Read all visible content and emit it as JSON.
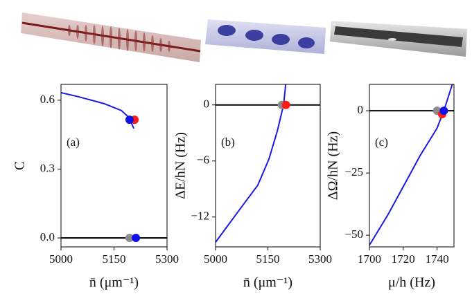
{
  "chart_data": [
    {
      "type": "line",
      "panel_label": "(a)",
      "ylabel": "C",
      "xlabel": "n̄ (μm⁻¹)",
      "xlim": [
        5000,
        5300
      ],
      "ylim": [
        -0.039,
        0.669
      ],
      "xticks": [
        5000,
        5150,
        5300
      ],
      "yticks": [
        {
          "value": 0,
          "label": "0.0"
        },
        0.3,
        0.6
      ],
      "hline": 0,
      "series": [
        {
          "color": "#1a1ae0",
          "x": [
            5000,
            5050,
            5122,
            5171,
            5192,
            5206
          ],
          "values": [
            0.633,
            0.615,
            0.585,
            0.555,
            0.525,
            0.477
          ]
        }
      ],
      "markers": [
        {
          "x": 5208,
          "y": 0.515,
          "color": "#ff1a1a"
        },
        {
          "x": 5194,
          "y": 0.515,
          "color": "#1010e8"
        },
        {
          "x": 5194,
          "y": 0,
          "color": "#8c8c8c"
        },
        {
          "x": 5212,
          "y": 0,
          "color": "#1010e8"
        }
      ]
    },
    {
      "type": "line",
      "panel_label": "(b)",
      "ylabel": "ΔE/hN (Hz)",
      "xlabel": "n̄ (μm⁻¹)",
      "xlim": [
        5000,
        5300
      ],
      "ylim": [
        -15.2,
        2.2
      ],
      "xticks": [
        5000,
        5150,
        5300
      ],
      "yticks": [
        {
          "value": -12,
          "label": "−12"
        },
        {
          "value": -6,
          "label": "−6"
        },
        0
      ],
      "hline": 0,
      "series": [
        {
          "color": "#1a1ae0",
          "x": [
            5000,
            5077,
            5121,
            5153,
            5177,
            5195,
            5201
          ],
          "values": [
            -14.7,
            -10.8,
            -8.6,
            -5.8,
            -2.8,
            0,
            2.2
          ]
        }
      ],
      "markers": [
        {
          "x": 5190,
          "y": 0,
          "color": "#8c8c8c"
        },
        {
          "x": 5202,
          "y": 0,
          "color": "#ff1a1a"
        }
      ]
    },
    {
      "type": "line",
      "panel_label": "(c)",
      "ylabel": "ΔΩ/hN (Hz)",
      "xlabel": "μ/h (Hz)",
      "xlim": [
        1700,
        1750
      ],
      "ylim": [
        -54.7,
        10.6
      ],
      "xticks": [
        1700,
        1720,
        1740
      ],
      "yticks": [
        {
          "value": -50,
          "label": "−50"
        },
        {
          "value": -25,
          "label": "−25"
        },
        0
      ],
      "hline": 0,
      "series": [
        {
          "color": "#1a1ae0",
          "x": [
            1700,
            1711,
            1720,
            1730,
            1740,
            1744,
            1749
          ],
          "values": [
            -54,
            -41.7,
            -30.5,
            -18,
            -7,
            0,
            10.6
          ]
        }
      ],
      "markers": [
        {
          "x": 1740,
          "y": 0,
          "color": "#8c8c8c"
        },
        {
          "x": 1743,
          "y": -1.4,
          "color": "#ff1a1a"
        },
        {
          "x": 1744,
          "y": 0,
          "color": "#1010e8"
        }
      ]
    }
  ]
}
